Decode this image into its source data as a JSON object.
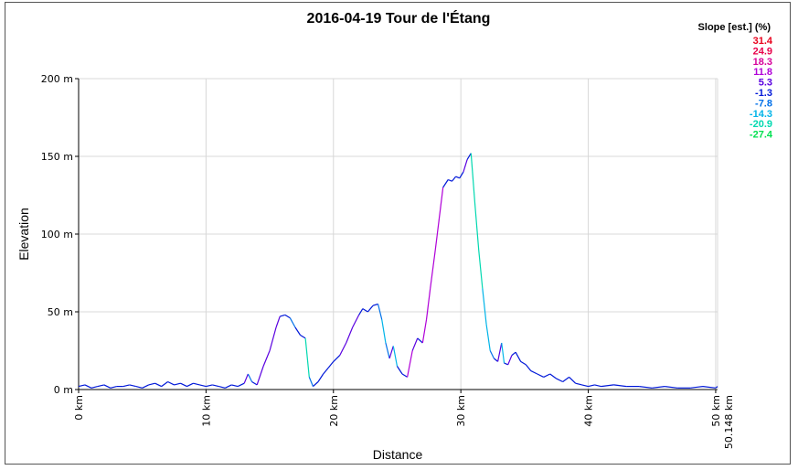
{
  "chart_data": {
    "type": "line",
    "title": "2016-04-19 Tour de l'Étang",
    "xlabel": "Distance",
    "ylabel": "Elevation",
    "xlim": [
      0,
      50.148
    ],
    "ylim": [
      0,
      200
    ],
    "grid": true,
    "x_ticks": [
      "0 km",
      "10 km",
      "20 km",
      "30 km",
      "40 km",
      "50 km"
    ],
    "x_end_label": "50.148 km",
    "y_ticks": [
      "0 m",
      "50 m",
      "100 m",
      "150 m",
      "200 m"
    ],
    "legend": {
      "title": "Slope [est.] (%)",
      "position": "top-right",
      "entries": [
        {
          "label": "31.4",
          "color": "#e8001c"
        },
        {
          "label": "24.9",
          "color": "#e8004a"
        },
        {
          "label": "18.3",
          "color": "#d6009a"
        },
        {
          "label": "11.8",
          "color": "#b000d8"
        },
        {
          "label": "5.3",
          "color": "#5a00e0"
        },
        {
          "label": "-1.3",
          "color": "#0018d8"
        },
        {
          "label": "-7.8",
          "color": "#0070e8"
        },
        {
          "label": "-14.3",
          "color": "#00b4e8"
        },
        {
          "label": "-20.9",
          "color": "#00d8b0"
        },
        {
          "label": "-27.4",
          "color": "#00e050"
        }
      ]
    },
    "series": [
      {
        "x": [
          0,
          0.5,
          1,
          1.5,
          2,
          2.5,
          3,
          3.5,
          4,
          4.5,
          5,
          5.5,
          6,
          6.5,
          7,
          7.5,
          8,
          8.5,
          9,
          9.5,
          10,
          10.5,
          11,
          11.5,
          12,
          12.5,
          13,
          13.3,
          13.6,
          14,
          14.5,
          15,
          15.5,
          15.8,
          16.2,
          16.6,
          17,
          17.4,
          17.8,
          18.1,
          18.4,
          18.8,
          19.2,
          19.6,
          20,
          20.5,
          21,
          21.5,
          22,
          22.3,
          22.7,
          23.1,
          23.5,
          23.8,
          24.1,
          24.4,
          24.7,
          25,
          25.4,
          25.8,
          26.2,
          26.6,
          27,
          27.3,
          27.6,
          28,
          28.3,
          28.6,
          29,
          29.3,
          29.6,
          29.9,
          30.2,
          30.5,
          30.8,
          31.1,
          31.4,
          31.7,
          32,
          32.3,
          32.6,
          32.9,
          33.2,
          33.4,
          33.7,
          34,
          34.3,
          34.7,
          35.1,
          35.5,
          36,
          36.5,
          37,
          37.5,
          38,
          38.5,
          39,
          39.5,
          40,
          40.5,
          41,
          42,
          43,
          44,
          45,
          46,
          47,
          48,
          49,
          50,
          50.148
        ],
        "y": [
          2,
          3,
          1,
          2,
          3,
          1,
          2,
          2,
          3,
          2,
          1,
          3,
          4,
          2,
          5,
          3,
          4,
          2,
          4,
          3,
          2,
          3,
          2,
          1,
          3,
          2,
          4,
          10,
          5,
          3,
          15,
          25,
          40,
          47,
          48,
          46,
          40,
          35,
          33,
          8,
          2,
          5,
          10,
          14,
          18,
          22,
          30,
          40,
          48,
          52,
          50,
          54,
          55,
          45,
          30,
          20,
          28,
          15,
          10,
          8,
          25,
          33,
          30,
          45,
          65,
          90,
          110,
          130,
          135,
          134,
          137,
          136,
          140,
          148,
          152,
          120,
          90,
          65,
          42,
          25,
          20,
          18,
          30,
          17,
          16,
          22,
          24,
          18,
          16,
          12,
          10,
          8,
          10,
          7,
          5,
          8,
          4,
          3,
          2,
          3,
          2,
          3,
          2,
          2,
          1,
          2,
          1,
          1,
          2,
          1,
          2
        ],
        "color_by_slope": true
      }
    ]
  }
}
